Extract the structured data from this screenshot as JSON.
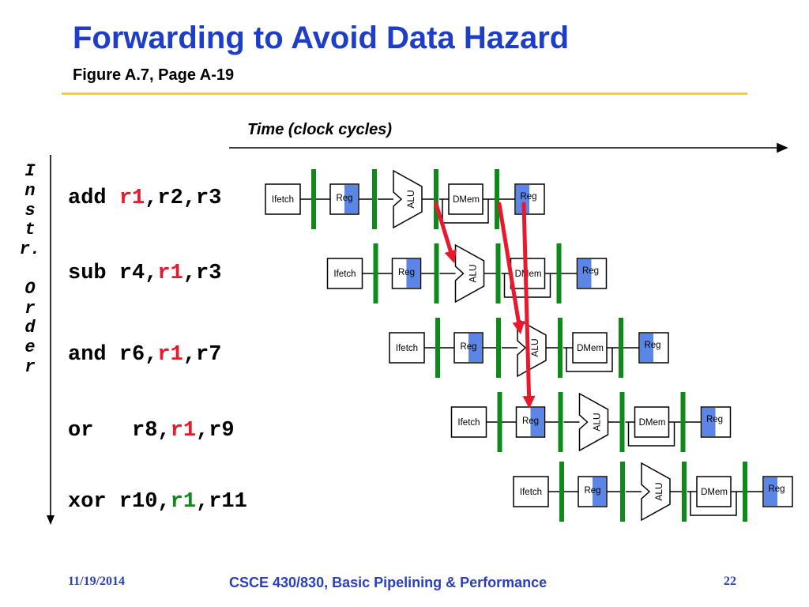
{
  "slide": {
    "title": "Forwarding to Avoid Data Hazard",
    "subtitle": "Figure A.7, Page A-19"
  },
  "axes": {
    "time_label": "Time (clock cycles)",
    "order_label_chars": [
      "I",
      "n",
      "s",
      "t",
      "r.",
      "",
      "O",
      "r",
      "d",
      "e",
      "r"
    ]
  },
  "instructions": [
    {
      "op": "add",
      "pre": " ",
      "reg": "r1",
      "post": ",r2,r3",
      "reg_color": "red"
    },
    {
      "op": "sub",
      "pre": " r4,",
      "reg": "r1",
      "post": ",r3",
      "reg_color": "red"
    },
    {
      "op": "and",
      "pre": " r6,",
      "reg": "r1",
      "post": ",r7",
      "reg_color": "red"
    },
    {
      "op": "or",
      "pre": "   r8,",
      "reg": "r1",
      "post": ",r9",
      "reg_color": "red"
    },
    {
      "op": "xor",
      "pre": " r10,",
      "reg": "r1",
      "post": ",r11",
      "reg_color": "green"
    }
  ],
  "pipeline": {
    "stage_labels": {
      "ifetch": "Ifetch",
      "reg": "Reg",
      "alu": "ALU",
      "dmem": "DMem"
    }
  },
  "colors": {
    "title": "#1f3ec8",
    "rule": "#f5d020",
    "latch": "#0f8a1a",
    "reg_fill": "#5b86e6",
    "arrow": "#e8192c",
    "footer": "#2a3fbf"
  },
  "footer": {
    "date": "11/19/2014",
    "course": "CSCE 430/830, Basic Pipelining & Performance",
    "page": "22"
  }
}
